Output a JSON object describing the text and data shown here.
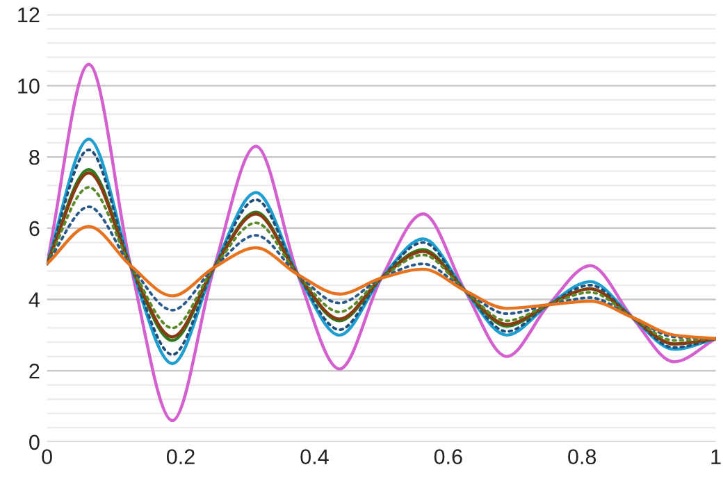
{
  "chart_data": {
    "type": "line",
    "x": [
      0,
      0.0625,
      0.125,
      0.1875,
      0.25,
      0.3125,
      0.375,
      0.4375,
      0.5,
      0.5625,
      0.625,
      0.6875,
      0.75,
      0.8125,
      0.875,
      0.9375,
      1
    ],
    "series": [
      {
        "color": "#d45fcf",
        "line_style": "solid",
        "values": [
          5,
          10.6,
          4.95,
          0.6,
          4.9,
          8.3,
          4.7,
          2.05,
          4.6,
          6.4,
          4.25,
          2.4,
          3.85,
          4.95,
          3.5,
          2.25,
          2.9
        ]
      },
      {
        "color": "#1f9fd0",
        "line_style": "solid",
        "values": [
          5,
          8.5,
          4.95,
          2.2,
          4.9,
          7.0,
          4.7,
          3.0,
          4.6,
          5.7,
          4.25,
          3.0,
          3.85,
          4.5,
          3.5,
          2.6,
          2.9
        ]
      },
      {
        "color": "#1f4e79",
        "line_style": "dotted",
        "values": [
          5,
          8.2,
          4.95,
          2.45,
          4.9,
          6.8,
          4.7,
          3.15,
          4.6,
          5.6,
          4.25,
          3.1,
          3.85,
          4.4,
          3.5,
          2.65,
          2.9
        ]
      },
      {
        "color": "#2f7a1f",
        "line_style": "solid",
        "values": [
          5,
          7.65,
          4.95,
          2.85,
          4.9,
          6.45,
          4.7,
          3.4,
          4.6,
          5.4,
          4.25,
          3.25,
          3.85,
          4.3,
          3.5,
          2.75,
          2.9
        ]
      },
      {
        "color": "#8a3a12",
        "line_style": "solid",
        "values": [
          5,
          7.55,
          4.95,
          2.95,
          4.9,
          6.4,
          4.7,
          3.45,
          4.6,
          5.35,
          4.25,
          3.3,
          3.85,
          4.3,
          3.5,
          2.75,
          2.9
        ]
      },
      {
        "color": "#5a8a2a",
        "line_style": "dotted",
        "values": [
          5,
          7.15,
          4.95,
          3.2,
          4.9,
          6.15,
          4.7,
          3.65,
          4.6,
          5.25,
          4.25,
          3.4,
          3.85,
          4.2,
          3.5,
          2.85,
          2.9
        ]
      },
      {
        "color": "#2a5a8a",
        "line_style": "dotted",
        "values": [
          5,
          6.6,
          4.95,
          3.7,
          4.9,
          5.8,
          4.7,
          3.9,
          4.6,
          5.0,
          4.25,
          3.6,
          3.85,
          4.05,
          3.5,
          2.95,
          2.9
        ]
      },
      {
        "color": "#e8731f",
        "line_style": "solid",
        "values": [
          5,
          6.05,
          4.95,
          4.1,
          4.9,
          5.45,
          4.7,
          4.15,
          4.6,
          4.85,
          4.25,
          3.75,
          3.85,
          3.95,
          3.5,
          3.0,
          2.9
        ]
      }
    ],
    "xlim": [
      0,
      1
    ],
    "xticks": [
      0,
      0.2,
      0.4,
      0.6,
      0.8,
      1
    ],
    "ylim": [
      0,
      12
    ],
    "yticks": [
      0,
      {
        "value": 0.4,
        "label": null
      },
      {
        "value": 0.8,
        "label": null
      },
      {
        "value": 1.2,
        "label": null
      },
      {
        "value": 1.6,
        "label": null
      },
      2,
      {
        "value": 2.4,
        "label": null
      },
      {
        "value": 2.8,
        "label": null
      },
      {
        "value": 3.2,
        "label": null
      },
      {
        "value": 3.6,
        "label": null
      },
      4,
      {
        "value": 4.4,
        "label": null
      },
      {
        "value": 4.8,
        "label": null
      },
      {
        "value": 5.2,
        "label": null
      },
      {
        "value": 5.6,
        "label": null
      },
      6,
      {
        "value": 6.4,
        "label": null
      },
      {
        "value": 6.8,
        "label": null
      },
      {
        "value": 7.2,
        "label": null
      },
      {
        "value": 7.6,
        "label": null
      },
      8,
      {
        "value": 8.4,
        "label": null
      },
      {
        "value": 8.8,
        "label": null
      },
      {
        "value": 9.2,
        "label": null
      },
      {
        "value": 9.6,
        "label": null
      },
      10,
      {
        "value": 10.4,
        "label": null
      },
      {
        "value": 10.8,
        "label": null
      },
      {
        "value": 11.2,
        "label": null
      },
      {
        "value": 11.6,
        "label": null
      },
      12
    ],
    "grid": "y",
    "legend": false,
    "marker": "none"
  }
}
